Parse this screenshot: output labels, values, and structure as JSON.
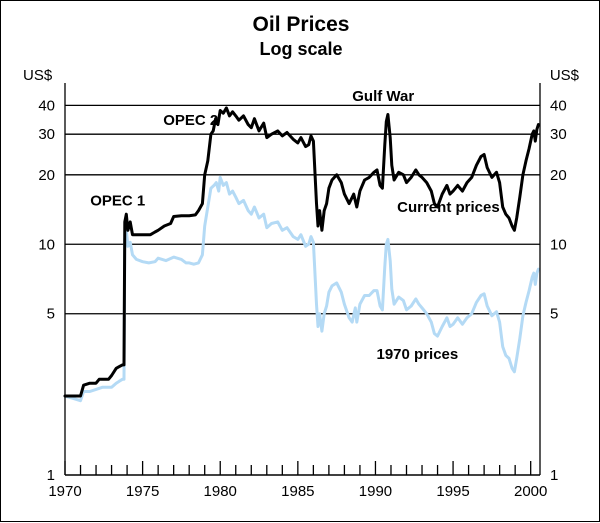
{
  "chart_data": {
    "type": "line",
    "title": "Oil Prices",
    "subtitle": "Log scale",
    "ylabel_left": "US$",
    "ylabel_right": "US$",
    "yscale": "log",
    "ylim": [
      1,
      50
    ],
    "xlim": [
      1970,
      2000.6
    ],
    "y_ticks": [
      1,
      5,
      10,
      20,
      30,
      40
    ],
    "y_tick_labels": [
      "1",
      "5",
      "10",
      "20",
      "30",
      "40"
    ],
    "gridlines_at": [
      5,
      10,
      20,
      30,
      40
    ],
    "x_tick_labels": [
      {
        "year": 1970,
        "label": "1970"
      },
      {
        "year": 1975,
        "label": "1975"
      },
      {
        "year": 1980,
        "label": "1980"
      },
      {
        "year": 1985,
        "label": "1985"
      },
      {
        "year": 1990,
        "label": "1990"
      },
      {
        "year": 1995,
        "label": "1995"
      },
      {
        "year": 2000,
        "label": "2000"
      }
    ],
    "annotations": [
      {
        "text": "OPEC 1",
        "x": 1973.4,
        "y": 15.5
      },
      {
        "text": "OPEC 2",
        "x": 1978.1,
        "y": 34.5
      },
      {
        "text": "Gulf War",
        "x": 1990.5,
        "y": 44
      },
      {
        "text": "Current prices",
        "x": 1994.7,
        "y": 14.5
      },
      {
        "text": "1970 prices",
        "x": 1992.7,
        "y": 3.35
      }
    ],
    "series": [
      {
        "name": "Current prices",
        "color": "#000000",
        "points": [
          [
            1970.0,
            2.2
          ],
          [
            1970.5,
            2.2
          ],
          [
            1971.0,
            2.2
          ],
          [
            1971.2,
            2.45
          ],
          [
            1971.6,
            2.5
          ],
          [
            1972.0,
            2.5
          ],
          [
            1972.2,
            2.6
          ],
          [
            1972.8,
            2.6
          ],
          [
            1973.0,
            2.7
          ],
          [
            1973.3,
            2.9
          ],
          [
            1973.5,
            2.95
          ],
          [
            1973.7,
            3.0
          ],
          [
            1973.8,
            3.0
          ],
          [
            1973.85,
            12.5
          ],
          [
            1973.95,
            13.5
          ],
          [
            1974.05,
            11.5
          ],
          [
            1974.2,
            12.5
          ],
          [
            1974.35,
            11.0
          ],
          [
            1974.6,
            11.0
          ],
          [
            1975.0,
            11.0
          ],
          [
            1975.5,
            11.0
          ],
          [
            1975.8,
            11.3
          ],
          [
            1976.0,
            11.5
          ],
          [
            1976.4,
            12.0
          ],
          [
            1976.8,
            12.3
          ],
          [
            1977.0,
            13.2
          ],
          [
            1977.5,
            13.3
          ],
          [
            1978.0,
            13.3
          ],
          [
            1978.4,
            13.4
          ],
          [
            1978.6,
            14.0
          ],
          [
            1978.85,
            15.0
          ],
          [
            1979.0,
            20.0
          ],
          [
            1979.2,
            23.0
          ],
          [
            1979.4,
            30.0
          ],
          [
            1979.55,
            31.0
          ],
          [
            1979.7,
            35.0
          ],
          [
            1979.85,
            33.0
          ],
          [
            1980.0,
            38.0
          ],
          [
            1980.2,
            37.0
          ],
          [
            1980.4,
            39.0
          ],
          [
            1980.6,
            36.0
          ],
          [
            1980.8,
            37.5
          ],
          [
            1981.0,
            36.0
          ],
          [
            1981.2,
            34.5
          ],
          [
            1981.5,
            36.0
          ],
          [
            1981.8,
            33.0
          ],
          [
            1982.0,
            32.0
          ],
          [
            1982.2,
            35.0
          ],
          [
            1982.5,
            31.0
          ],
          [
            1982.8,
            33.5
          ],
          [
            1983.0,
            29.0
          ],
          [
            1983.3,
            30.0
          ],
          [
            1983.7,
            31.0
          ],
          [
            1984.0,
            29.5
          ],
          [
            1984.3,
            30.5
          ],
          [
            1984.7,
            28.5
          ],
          [
            1985.0,
            27.5
          ],
          [
            1985.2,
            29.0
          ],
          [
            1985.5,
            26.5
          ],
          [
            1985.7,
            27.0
          ],
          [
            1985.85,
            29.5
          ],
          [
            1986.0,
            28.0
          ],
          [
            1986.2,
            15.0
          ],
          [
            1986.3,
            12.0
          ],
          [
            1986.4,
            14.0
          ],
          [
            1986.55,
            11.5
          ],
          [
            1986.7,
            14.0
          ],
          [
            1986.85,
            15.0
          ],
          [
            1987.0,
            17.5
          ],
          [
            1987.2,
            19.0
          ],
          [
            1987.5,
            20.0
          ],
          [
            1987.8,
            18.5
          ],
          [
            1988.0,
            16.5
          ],
          [
            1988.3,
            15.0
          ],
          [
            1988.6,
            16.5
          ],
          [
            1988.8,
            14.5
          ],
          [
            1989.0,
            17.0
          ],
          [
            1989.3,
            19.0
          ],
          [
            1989.6,
            19.5
          ],
          [
            1989.9,
            20.5
          ],
          [
            1990.1,
            21.0
          ],
          [
            1990.3,
            18.0
          ],
          [
            1990.45,
            17.5
          ],
          [
            1990.6,
            27.0
          ],
          [
            1990.7,
            34.0
          ],
          [
            1990.8,
            36.5
          ],
          [
            1990.95,
            29.0
          ],
          [
            1991.05,
            22.0
          ],
          [
            1991.2,
            19.0
          ],
          [
            1991.5,
            20.5
          ],
          [
            1991.8,
            20.0
          ],
          [
            1992.0,
            18.5
          ],
          [
            1992.3,
            19.5
          ],
          [
            1992.6,
            21.0
          ],
          [
            1992.8,
            20.0
          ],
          [
            1993.0,
            19.5
          ],
          [
            1993.3,
            18.5
          ],
          [
            1993.6,
            17.0
          ],
          [
            1993.8,
            15.0
          ],
          [
            1994.0,
            14.5
          ],
          [
            1994.3,
            16.5
          ],
          [
            1994.6,
            18.0
          ],
          [
            1994.8,
            16.5
          ],
          [
            1995.0,
            17.0
          ],
          [
            1995.3,
            18.0
          ],
          [
            1995.6,
            17.0
          ],
          [
            1995.9,
            18.5
          ],
          [
            1996.2,
            19.5
          ],
          [
            1996.5,
            22.0
          ],
          [
            1996.8,
            24.0
          ],
          [
            1997.0,
            24.5
          ],
          [
            1997.2,
            21.5
          ],
          [
            1997.5,
            19.5
          ],
          [
            1997.8,
            20.5
          ],
          [
            1998.0,
            18.5
          ],
          [
            1998.2,
            14.5
          ],
          [
            1998.4,
            13.5
          ],
          [
            1998.6,
            13.0
          ],
          [
            1998.8,
            12.0
          ],
          [
            1998.95,
            11.5
          ],
          [
            1999.1,
            13.0
          ],
          [
            1999.3,
            16.0
          ],
          [
            1999.5,
            20.0
          ],
          [
            1999.7,
            23.0
          ],
          [
            1999.9,
            26.0
          ],
          [
            2000.1,
            30.0
          ],
          [
            2000.2,
            31.0
          ],
          [
            2000.3,
            28.0
          ],
          [
            2000.4,
            31.5
          ],
          [
            2000.5,
            33.0
          ]
        ]
      },
      {
        "name": "1970 prices",
        "color": "#b4daf5",
        "points": [
          [
            1970.0,
            2.2
          ],
          [
            1970.5,
            2.15
          ],
          [
            1971.0,
            2.1
          ],
          [
            1971.2,
            2.3
          ],
          [
            1971.6,
            2.3
          ],
          [
            1972.0,
            2.35
          ],
          [
            1972.4,
            2.4
          ],
          [
            1972.8,
            2.4
          ],
          [
            1973.0,
            2.4
          ],
          [
            1973.3,
            2.5
          ],
          [
            1973.5,
            2.55
          ],
          [
            1973.7,
            2.6
          ],
          [
            1973.8,
            2.6
          ],
          [
            1973.85,
            10.5
          ],
          [
            1973.95,
            11.5
          ],
          [
            1974.05,
            9.8
          ],
          [
            1974.2,
            10.2
          ],
          [
            1974.35,
            9.0
          ],
          [
            1974.6,
            8.6
          ],
          [
            1975.0,
            8.4
          ],
          [
            1975.4,
            8.3
          ],
          [
            1975.8,
            8.4
          ],
          [
            1976.0,
            8.7
          ],
          [
            1976.5,
            8.5
          ],
          [
            1977.0,
            8.8
          ],
          [
            1977.5,
            8.6
          ],
          [
            1977.8,
            8.3
          ],
          [
            1978.0,
            8.3
          ],
          [
            1978.3,
            8.2
          ],
          [
            1978.6,
            8.3
          ],
          [
            1978.85,
            9.0
          ],
          [
            1979.0,
            12.0
          ],
          [
            1979.2,
            14.5
          ],
          [
            1979.4,
            17.5
          ],
          [
            1979.6,
            18.0
          ],
          [
            1979.75,
            18.5
          ],
          [
            1979.9,
            17.0
          ],
          [
            1980.0,
            19.5
          ],
          [
            1980.2,
            18.0
          ],
          [
            1980.4,
            18.5
          ],
          [
            1980.6,
            16.5
          ],
          [
            1980.8,
            17.0
          ],
          [
            1981.0,
            16.0
          ],
          [
            1981.2,
            15.0
          ],
          [
            1981.5,
            15.5
          ],
          [
            1981.8,
            14.0
          ],
          [
            1982.0,
            13.5
          ],
          [
            1982.2,
            14.5
          ],
          [
            1982.5,
            13.0
          ],
          [
            1982.8,
            13.5
          ],
          [
            1983.0,
            11.8
          ],
          [
            1983.3,
            12.3
          ],
          [
            1983.7,
            12.5
          ],
          [
            1984.0,
            11.5
          ],
          [
            1984.3,
            11.8
          ],
          [
            1984.7,
            10.8
          ],
          [
            1985.0,
            10.5
          ],
          [
            1985.2,
            11.0
          ],
          [
            1985.5,
            9.8
          ],
          [
            1985.7,
            10.0
          ],
          [
            1985.85,
            10.8
          ],
          [
            1986.0,
            10.2
          ],
          [
            1986.2,
            5.5
          ],
          [
            1986.3,
            4.4
          ],
          [
            1986.4,
            5.0
          ],
          [
            1986.55,
            4.2
          ],
          [
            1986.7,
            5.0
          ],
          [
            1986.85,
            5.4
          ],
          [
            1987.0,
            6.2
          ],
          [
            1987.2,
            6.6
          ],
          [
            1987.5,
            6.8
          ],
          [
            1987.8,
            6.2
          ],
          [
            1988.0,
            5.5
          ],
          [
            1988.3,
            4.8
          ],
          [
            1988.5,
            4.6
          ],
          [
            1988.7,
            5.3
          ],
          [
            1988.8,
            4.6
          ],
          [
            1989.0,
            5.5
          ],
          [
            1989.3,
            6.0
          ],
          [
            1989.6,
            6.0
          ],
          [
            1989.9,
            6.3
          ],
          [
            1990.1,
            6.3
          ],
          [
            1990.3,
            5.4
          ],
          [
            1990.45,
            5.2
          ],
          [
            1990.6,
            8.0
          ],
          [
            1990.7,
            10.0
          ],
          [
            1990.8,
            10.5
          ],
          [
            1990.95,
            8.5
          ],
          [
            1991.05,
            6.4
          ],
          [
            1991.2,
            5.5
          ],
          [
            1991.5,
            5.9
          ],
          [
            1991.8,
            5.7
          ],
          [
            1992.0,
            5.2
          ],
          [
            1992.3,
            5.4
          ],
          [
            1992.6,
            5.8
          ],
          [
            1992.8,
            5.5
          ],
          [
            1993.0,
            5.3
          ],
          [
            1993.3,
            5.0
          ],
          [
            1993.6,
            4.6
          ],
          [
            1993.8,
            4.1
          ],
          [
            1994.0,
            4.0
          ],
          [
            1994.3,
            4.4
          ],
          [
            1994.6,
            4.8
          ],
          [
            1994.8,
            4.4
          ],
          [
            1995.0,
            4.5
          ],
          [
            1995.3,
            4.8
          ],
          [
            1995.6,
            4.5
          ],
          [
            1995.9,
            4.8
          ],
          [
            1996.2,
            5.0
          ],
          [
            1996.5,
            5.6
          ],
          [
            1996.8,
            6.0
          ],
          [
            1997.0,
            6.1
          ],
          [
            1997.2,
            5.4
          ],
          [
            1997.5,
            4.9
          ],
          [
            1997.8,
            5.1
          ],
          [
            1998.0,
            4.6
          ],
          [
            1998.2,
            3.6
          ],
          [
            1998.4,
            3.3
          ],
          [
            1998.6,
            3.2
          ],
          [
            1998.8,
            2.9
          ],
          [
            1998.95,
            2.8
          ],
          [
            1999.1,
            3.2
          ],
          [
            1999.3,
            3.9
          ],
          [
            1999.5,
            4.9
          ],
          [
            1999.7,
            5.6
          ],
          [
            1999.9,
            6.3
          ],
          [
            2000.1,
            7.2
          ],
          [
            2000.2,
            7.5
          ],
          [
            2000.3,
            6.7
          ],
          [
            2000.4,
            7.5
          ],
          [
            2000.5,
            7.8
          ]
        ]
      }
    ]
  }
}
